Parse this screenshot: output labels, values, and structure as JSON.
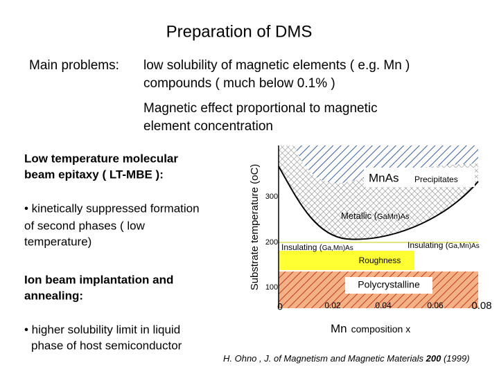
{
  "title": "Preparation of DMS",
  "problems": {
    "label": "Main problems:",
    "items": [
      [
        "low solubility of magnetic elements ( e.g. Mn )",
        "compounds ( much below 0.1% )"
      ],
      [
        "Magnetic effect proportional to magnetic",
        "element concentration"
      ]
    ]
  },
  "left": {
    "sections": [
      {
        "heading": [
          "Low temperature molecular",
          "beam epitaxy ( LT-MBE ):"
        ],
        "bullet": [
          "• kinetically suppressed formation",
          "of second phases  ( low",
          "temperature)"
        ]
      },
      {
        "heading": [
          "Ion beam implantation and",
          "annealing:"
        ],
        "bullet": [
          "• higher solubility limit in liquid",
          "phase of host semiconductor"
        ]
      }
    ]
  },
  "diagram": {
    "y_axis_label": "Substrate temperature (oC)",
    "yticks": [
      "300",
      "200",
      "100"
    ],
    "xticks": [
      "0",
      "0.02",
      "0.04",
      "0.06",
      "0.08"
    ],
    "x_axis_label": [
      "Mn",
      "composition x"
    ],
    "regions": {
      "mnas": [
        "MnAs",
        "Precipitates"
      ],
      "metallic": [
        "Metallic (",
        "GaMn)As"
      ],
      "insulating_left": [
        "Insulating (",
        "Ga,Mn)As"
      ],
      "insulating_right": [
        "Insulating (",
        "Ga,Mn)As"
      ],
      "roughness": "Roughness",
      "polycrystalline": "Polycrystalline"
    }
  },
  "citation": {
    "before": "H. Ohno , J. of Magnetism and Magnetic Materials ",
    "volume": "200",
    "after": " (1999)"
  }
}
